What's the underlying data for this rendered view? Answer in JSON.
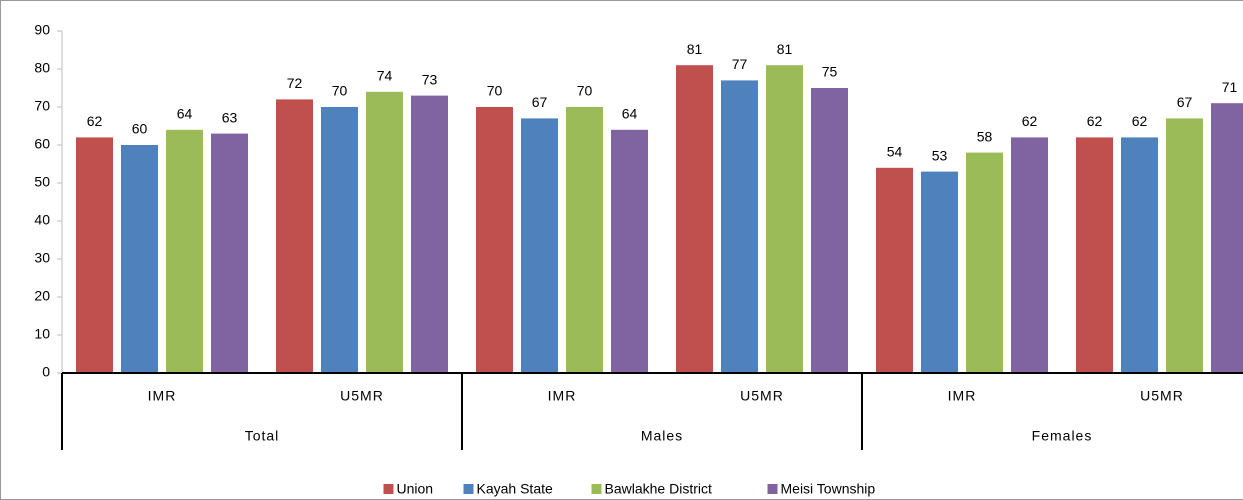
{
  "chart_data": {
    "type": "bar",
    "categories": [
      "IMR",
      "U5MR",
      "IMR",
      "U5MR",
      "IMR",
      "U5MR"
    ],
    "groups": [
      "Total",
      "Males",
      "Females"
    ],
    "series": [
      {
        "name": "Union",
        "color": "#c0504d",
        "values": [
          62,
          72,
          70,
          81,
          54,
          62
        ]
      },
      {
        "name": "Kayah State",
        "color": "#4f81bd",
        "values": [
          60,
          70,
          67,
          77,
          53,
          62
        ]
      },
      {
        "name": "Bawlakhe District",
        "color": "#9bbb59",
        "values": [
          64,
          74,
          70,
          81,
          58,
          67
        ]
      },
      {
        "name": "Meisi Township",
        "color": "#8064a2",
        "values": [
          63,
          73,
          64,
          75,
          62,
          71
        ]
      }
    ],
    "ylim": [
      0,
      90
    ],
    "yticks": [
      0,
      10,
      20,
      30,
      40,
      50,
      60,
      70,
      80,
      90
    ],
    "grid": false,
    "legend": "bottom"
  }
}
